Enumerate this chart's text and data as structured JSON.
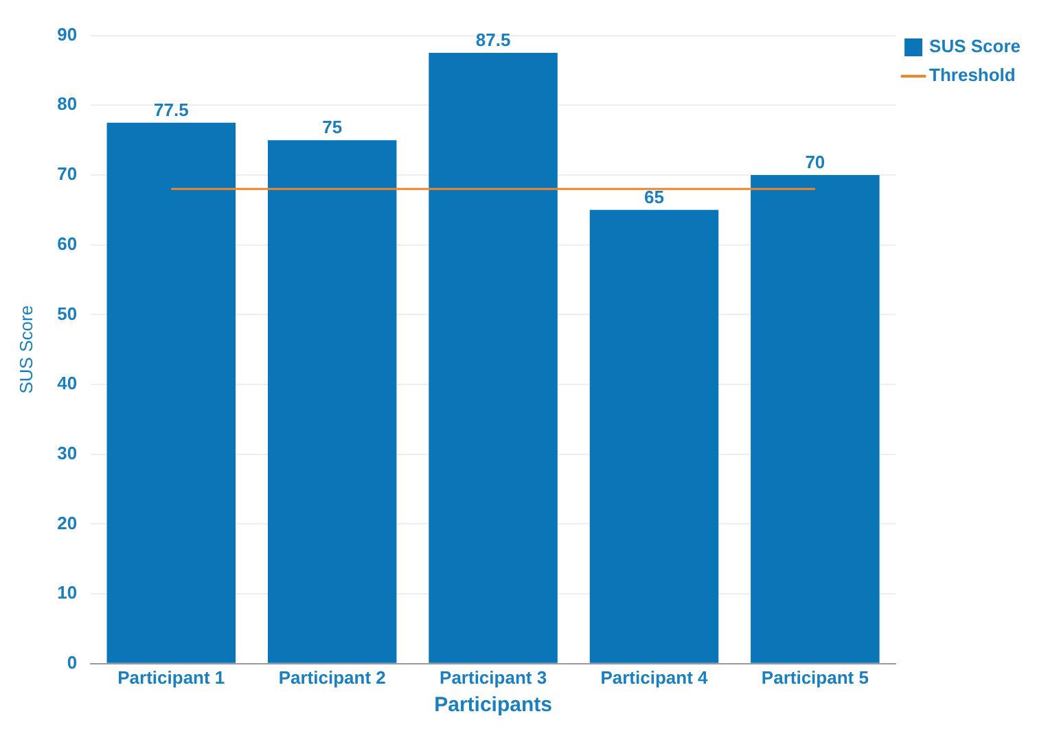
{
  "chart_data": {
    "type": "bar",
    "xlabel": "Participants",
    "ylabel": "SUS Score",
    "categories": [
      "Participant 1",
      "Participant 2",
      "Participant 3",
      "Participant 4",
      "Participant 5"
    ],
    "series": [
      {
        "name": "SUS Score",
        "color": "#0a76b7",
        "values": [
          77.5,
          75,
          87.5,
          65,
          70
        ],
        "value_labels": [
          "77.5",
          "75",
          "87.5",
          "65",
          "70"
        ]
      },
      {
        "name": "Threshold",
        "type": "line",
        "color": "#f0862c",
        "values": [
          68,
          68,
          68,
          68,
          68
        ]
      }
    ],
    "ylim": [
      0,
      90
    ],
    "yticks": [
      0,
      10,
      20,
      30,
      40,
      50,
      60,
      70,
      80,
      90
    ],
    "grid": "y",
    "legend": "top right",
    "marker": "none"
  }
}
